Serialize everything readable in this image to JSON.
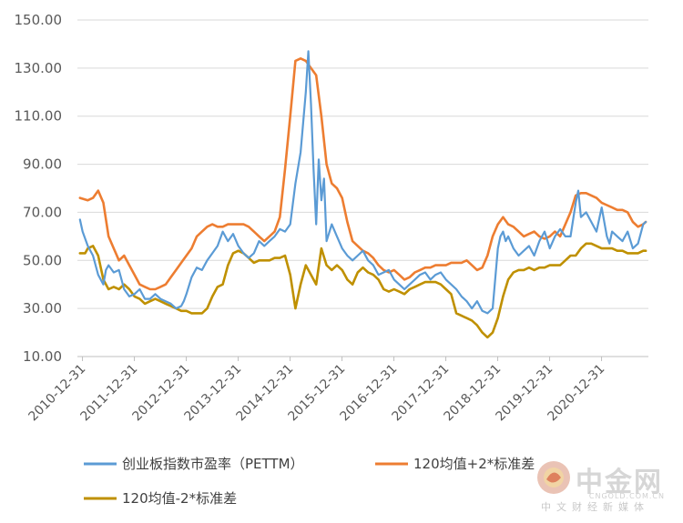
{
  "chart_data": {
    "type": "line",
    "title": "",
    "xlabel": "",
    "ylabel": "",
    "ylim": [
      10,
      150
    ],
    "yticks": [
      "150.00",
      "130.00",
      "110.00",
      "90.00",
      "70.00",
      "50.00",
      "30.00",
      "10.00"
    ],
    "xticks": [
      "2010-12-31",
      "2011-12-31",
      "2012-12-31",
      "2013-12-31",
      "2014-12-31",
      "2015-12-31",
      "2016-12-31",
      "2017-12-31",
      "2018-12-31",
      "2019-12-31",
      "2020-12-31"
    ],
    "xlim": [
      2010.9,
      2021.9
    ],
    "grid": "horizontal",
    "legend_position": "bottom",
    "series": [
      {
        "name": "创业板指数市盈率（PETTM）",
        "color": "#5b9bd5",
        "x": [
          2010.95,
          2011.0,
          2011.1,
          2011.2,
          2011.3,
          2011.4,
          2011.45,
          2011.5,
          2011.6,
          2011.7,
          2011.8,
          2011.9,
          2012.0,
          2012.1,
          2012.2,
          2012.3,
          2012.4,
          2012.5,
          2012.6,
          2012.7,
          2012.8,
          2012.9,
          2012.95,
          2013.0,
          2013.1,
          2013.2,
          2013.3,
          2013.4,
          2013.5,
          2013.6,
          2013.7,
          2013.8,
          2013.9,
          2014.0,
          2014.1,
          2014.2,
          2014.3,
          2014.4,
          2014.5,
          2014.6,
          2014.7,
          2014.8,
          2014.9,
          2015.0,
          2015.1,
          2015.2,
          2015.3,
          2015.35,
          2015.4,
          2015.45,
          2015.5,
          2015.55,
          2015.6,
          2015.65,
          2015.7,
          2015.8,
          2015.9,
          2016.0,
          2016.1,
          2016.2,
          2016.3,
          2016.4,
          2016.5,
          2016.6,
          2016.7,
          2016.8,
          2016.9,
          2017.0,
          2017.1,
          2017.2,
          2017.3,
          2017.4,
          2017.5,
          2017.6,
          2017.7,
          2017.8,
          2017.9,
          2018.0,
          2018.1,
          2018.2,
          2018.3,
          2018.4,
          2018.5,
          2018.6,
          2018.7,
          2018.8,
          2018.9,
          2019.0,
          2019.05,
          2019.1,
          2019.15,
          2019.2,
          2019.3,
          2019.4,
          2019.5,
          2019.6,
          2019.7,
          2019.8,
          2019.9,
          2020.0,
          2020.1,
          2020.2,
          2020.3,
          2020.4,
          2020.5,
          2020.55,
          2020.6,
          2020.7,
          2020.8,
          2020.9,
          2021.0,
          2021.1,
          2021.15,
          2021.2,
          2021.3,
          2021.4,
          2021.5,
          2021.6,
          2021.7,
          2021.8,
          2021.85
        ],
        "values": [
          67,
          62,
          56,
          52,
          44,
          40,
          46,
          48,
          45,
          46,
          38,
          35,
          36,
          38,
          34,
          34,
          36,
          34,
          33,
          32,
          30,
          31,
          33,
          36,
          43,
          47,
          46,
          50,
          53,
          56,
          62,
          58,
          61,
          56,
          53,
          51,
          53,
          58,
          56,
          58,
          60,
          63,
          62,
          65,
          82,
          95,
          120,
          137,
          115,
          88,
          65,
          92,
          75,
          84,
          58,
          65,
          60,
          55,
          52,
          50,
          52,
          54,
          50,
          48,
          44,
          45,
          46,
          42,
          40,
          38,
          40,
          42,
          44,
          45,
          42,
          44,
          45,
          42,
          40,
          38,
          35,
          33,
          30,
          33,
          29,
          28,
          30,
          55,
          60,
          62,
          58,
          60,
          55,
          52,
          54,
          56,
          52,
          58,
          62,
          55,
          60,
          63,
          60,
          60,
          74,
          79,
          68,
          70,
          66,
          62,
          72,
          60,
          57,
          62,
          60,
          58,
          62,
          55,
          57,
          65,
          66
        ]
      },
      {
        "name": "120均值+2*标准差",
        "color": "#ed7d31",
        "x": [
          2010.95,
          2011.1,
          2011.2,
          2011.3,
          2011.4,
          2011.5,
          2011.6,
          2011.7,
          2011.8,
          2011.9,
          2012.0,
          2012.1,
          2012.2,
          2012.3,
          2012.4,
          2012.5,
          2012.6,
          2012.7,
          2012.8,
          2012.9,
          2013.0,
          2013.1,
          2013.2,
          2013.3,
          2013.4,
          2013.5,
          2013.6,
          2013.7,
          2013.8,
          2013.9,
          2014.0,
          2014.1,
          2014.2,
          2014.3,
          2014.4,
          2014.5,
          2014.6,
          2014.7,
          2014.8,
          2014.9,
          2015.0,
          2015.1,
          2015.2,
          2015.3,
          2015.4,
          2015.5,
          2015.6,
          2015.7,
          2015.8,
          2015.9,
          2016.0,
          2016.1,
          2016.2,
          2016.3,
          2016.4,
          2016.5,
          2016.6,
          2016.7,
          2016.8,
          2016.9,
          2017.0,
          2017.1,
          2017.2,
          2017.3,
          2017.4,
          2017.5,
          2017.6,
          2017.7,
          2017.8,
          2017.9,
          2018.0,
          2018.1,
          2018.2,
          2018.3,
          2018.4,
          2018.5,
          2018.6,
          2018.7,
          2018.8,
          2018.9,
          2019.0,
          2019.1,
          2019.2,
          2019.3,
          2019.4,
          2019.5,
          2019.6,
          2019.7,
          2019.8,
          2019.9,
          2020.0,
          2020.1,
          2020.2,
          2020.3,
          2020.4,
          2020.5,
          2020.6,
          2020.7,
          2020.8,
          2020.9,
          2021.0,
          2021.1,
          2021.2,
          2021.3,
          2021.4,
          2021.5,
          2021.6,
          2021.7,
          2021.8,
          2021.85
        ],
        "values": [
          76,
          75,
          76,
          79,
          74,
          60,
          55,
          50,
          52,
          48,
          44,
          40,
          39,
          38,
          38,
          39,
          40,
          43,
          46,
          49,
          52,
          55,
          60,
          62,
          64,
          65,
          64,
          64,
          65,
          65,
          65,
          65,
          64,
          62,
          60,
          58,
          60,
          62,
          68,
          88,
          110,
          133,
          134,
          133,
          130,
          127,
          110,
          90,
          82,
          80,
          76,
          66,
          58,
          56,
          54,
          53,
          51,
          48,
          46,
          45,
          46,
          44,
          42,
          43,
          45,
          46,
          47,
          47,
          48,
          48,
          48,
          49,
          49,
          49,
          50,
          48,
          46,
          47,
          52,
          60,
          65,
          68,
          65,
          64,
          62,
          60,
          61,
          62,
          60,
          59,
          60,
          62,
          60,
          65,
          70,
          77,
          78,
          78,
          77,
          76,
          74,
          73,
          72,
          71,
          71,
          70,
          66,
          64,
          65,
          66
        ]
      },
      {
        "name": "120均值-2*标准差",
        "color": "#bf9000",
        "x": [
          2010.95,
          2011.05,
          2011.1,
          2011.2,
          2011.3,
          2011.4,
          2011.5,
          2011.6,
          2011.7,
          2011.8,
          2011.9,
          2012.0,
          2012.1,
          2012.2,
          2012.3,
          2012.4,
          2012.5,
          2012.6,
          2012.7,
          2012.8,
          2012.9,
          2013.0,
          2013.1,
          2013.2,
          2013.3,
          2013.4,
          2013.5,
          2013.6,
          2013.7,
          2013.8,
          2013.9,
          2014.0,
          2014.1,
          2014.2,
          2014.3,
          2014.4,
          2014.5,
          2014.6,
          2014.7,
          2014.8,
          2014.9,
          2015.0,
          2015.1,
          2015.2,
          2015.3,
          2015.4,
          2015.5,
          2015.6,
          2015.7,
          2015.8,
          2015.9,
          2016.0,
          2016.1,
          2016.2,
          2016.3,
          2016.4,
          2016.5,
          2016.6,
          2016.7,
          2016.8,
          2016.9,
          2017.0,
          2017.1,
          2017.2,
          2017.3,
          2017.4,
          2017.5,
          2017.6,
          2017.7,
          2017.8,
          2017.9,
          2018.0,
          2018.1,
          2018.2,
          2018.3,
          2018.4,
          2018.5,
          2018.6,
          2018.7,
          2018.8,
          2018.9,
          2019.0,
          2019.1,
          2019.2,
          2019.3,
          2019.4,
          2019.5,
          2019.6,
          2019.7,
          2019.8,
          2019.9,
          2020.0,
          2020.1,
          2020.2,
          2020.3,
          2020.4,
          2020.5,
          2020.6,
          2020.7,
          2020.8,
          2020.9,
          2021.0,
          2021.1,
          2021.2,
          2021.3,
          2021.4,
          2021.5,
          2021.6,
          2021.7,
          2021.8,
          2021.85
        ],
        "values": [
          53,
          53,
          55,
          56,
          52,
          42,
          38,
          39,
          38,
          40,
          38,
          35,
          34,
          32,
          33,
          34,
          33,
          32,
          31,
          30,
          29,
          29,
          28,
          28,
          28,
          30,
          35,
          39,
          40,
          48,
          53,
          54,
          53,
          51,
          49,
          50,
          50,
          50,
          51,
          51,
          52,
          44,
          30,
          40,
          48,
          44,
          40,
          55,
          48,
          46,
          48,
          46,
          42,
          40,
          45,
          47,
          45,
          44,
          42,
          38,
          37,
          38,
          37,
          36,
          38,
          39,
          40,
          41,
          41,
          41,
          40,
          38,
          36,
          28,
          27,
          26,
          25,
          23,
          20,
          18,
          20,
          26,
          35,
          42,
          45,
          46,
          46,
          47,
          46,
          47,
          47,
          48,
          48,
          48,
          50,
          52,
          52,
          55,
          57,
          57,
          56,
          55,
          55,
          55,
          54,
          54,
          53,
          53,
          53,
          54,
          54
        ]
      }
    ]
  },
  "watermark": {
    "brand": "中金网",
    "domain": "CNGOLD.COM.CN",
    "slogan": "中文财经新媒体"
  }
}
